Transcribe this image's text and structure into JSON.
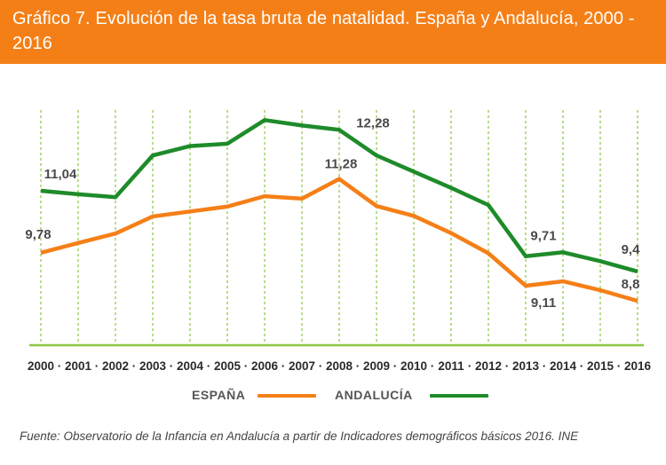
{
  "header": {
    "title": "Gráfico 7. Evolución de la tasa bruta de natalidad. España y Andalucía, 2000 - 2016"
  },
  "colors": {
    "header_bg": "#f57f17",
    "espana": "#f57f17",
    "andalucia": "#1e8b2a",
    "grid": "#8cc63f",
    "axis": "#8cc63f",
    "label_text": "#4a4a4a"
  },
  "chart_data": {
    "type": "line",
    "title": "Gráfico 7. Evolución de la tasa bruta de natalidad. España y Andalucía, 2000 - 2016",
    "xlabel": "",
    "ylabel": "",
    "ylim": [
      7.9,
      12.9
    ],
    "grid": "vertical dotted",
    "legend_position": "bottom",
    "x": [
      "2000",
      "2001",
      "2002",
      "2003",
      "2004",
      "2005",
      "2006",
      "2007",
      "2008",
      "2009",
      "2010",
      "2011",
      "2012",
      "2013",
      "2014",
      "2015",
      "2016"
    ],
    "series": [
      {
        "name": "ESPAÑA",
        "color": "#f57f17",
        "values": [
          9.78,
          9.98,
          10.17,
          10.52,
          10.62,
          10.72,
          10.93,
          10.88,
          11.28,
          10.73,
          10.53,
          10.18,
          9.77,
          9.11,
          9.2,
          9.02,
          8.8
        ]
      },
      {
        "name": "ANDALUCÍA",
        "color": "#1e8b2a",
        "values": [
          11.04,
          10.97,
          10.91,
          11.76,
          11.95,
          12.0,
          12.48,
          12.37,
          12.28,
          11.76,
          11.43,
          11.1,
          10.75,
          9.71,
          9.79,
          9.61,
          9.4
        ]
      }
    ],
    "annotations": [
      {
        "series": "ANDALUCÍA",
        "x": "2000",
        "label": "11,04"
      },
      {
        "series": "ESPAÑA",
        "x": "2000",
        "label": "9,78"
      },
      {
        "series": "ANDALUCÍA",
        "x": "2008",
        "label": "12,28"
      },
      {
        "series": "ESPAÑA",
        "x": "2008",
        "label": "11,28"
      },
      {
        "series": "ANDALUCÍA",
        "x": "2013",
        "label": "9,71"
      },
      {
        "series": "ESPAÑA",
        "x": "2013",
        "label": "9,11"
      },
      {
        "series": "ANDALUCÍA",
        "x": "2016",
        "label": "9,4"
      },
      {
        "series": "ESPAÑA",
        "x": "2016",
        "label": "8,8"
      }
    ]
  },
  "legend": {
    "espana_label": "ESPAÑA",
    "andalucia_label": "ANDALUCÍA"
  },
  "footer": {
    "source": "Fuente: Observatorio de la Infancia en Andalucía a partir de Indicadores demográficos básicos 2016. INE"
  }
}
